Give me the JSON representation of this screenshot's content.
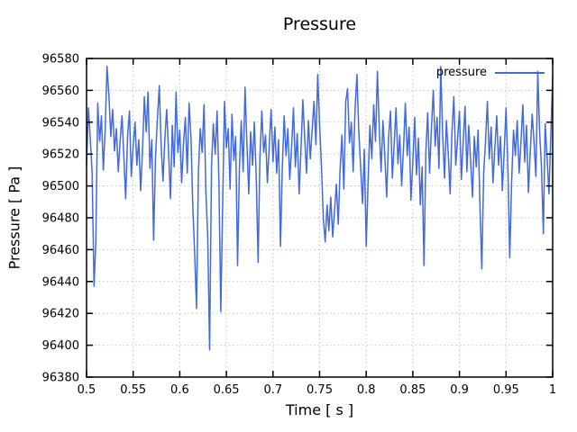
{
  "colors": {
    "line": "#4169e1",
    "grid": "#c4c4c4",
    "axis": "#000000",
    "text": "#000000",
    "background": "#ffffff"
  },
  "chart_data": {
    "type": "line",
    "title": "Pressure",
    "xlabel": "Time [ s ]",
    "ylabel": "Pressure [ Pa ]",
    "grid": true,
    "grid_style": "dotted",
    "legend_position": "top-right-inside",
    "xlim": [
      0.5,
      1
    ],
    "ylim": [
      96380,
      96580
    ],
    "x_ticks": [
      0.5,
      0.55,
      0.6,
      0.65,
      0.7,
      0.75,
      0.8,
      0.85,
      0.9,
      0.95,
      1
    ],
    "x_tick_labels": [
      "0.5",
      "0.55",
      "0.6",
      "0.65",
      "0.7",
      "0.75",
      "0.8",
      "0.85",
      "0.9",
      "0.95",
      "1"
    ],
    "y_ticks": [
      96380,
      96400,
      96420,
      96440,
      96460,
      96480,
      96500,
      96520,
      96540,
      96560,
      96580
    ],
    "y_tick_labels": [
      "96380",
      "96400",
      "96420",
      "96440",
      "96460",
      "96480",
      "96500",
      "96520",
      "96540",
      "96560",
      "96580"
    ],
    "series": [
      {
        "name": "pressure",
        "color": "#4169e1",
        "x_start": 0.5,
        "x_step": 0.002,
        "values": [
          96513,
          96549,
          96530,
          96508,
          96437,
          96465,
          96552,
          96528,
          96544,
          96510,
          96536,
          96575,
          96557,
          96531,
          96548,
          96522,
          96536,
          96509,
          96528,
          96544,
          96518,
          96492,
          96531,
          96547,
          96506,
          96525,
          96540,
          96513,
          96529,
          96497,
          96521,
          96556,
          96534,
          96559,
          96511,
          96529,
          96466,
          96519,
          96542,
          96563,
          96526,
          96503,
          96530,
          96548,
          96521,
          96492,
          96538,
          96512,
          96559,
          96521,
          96535,
          96502,
          96526,
          96543,
          96508,
          96552,
          96531,
          96486,
          96458,
          96423,
          96509,
          96536,
          96521,
          96551,
          96496,
          96468,
          96397,
          96512,
          96539,
          96520,
          96547,
          96503,
          96421,
          96489,
          96553,
          96524,
          96536,
          96498,
          96545,
          96516,
          96531,
          96450,
          96512,
          96541,
          96509,
          96562,
          96528,
          96495,
          96534,
          96513,
          96540,
          96506,
          96452,
          96518,
          96547,
          96521,
          96532,
          96502,
          96526,
          96548,
          96515,
          96537,
          96508,
          96529,
          96462,
          96511,
          96544,
          96519,
          96536,
          96504,
          96525,
          96549,
          96512,
          96533,
          96495,
          96522,
          96554,
          96530,
          96508,
          96541,
          96517,
          96535,
          96553,
          96526,
          96570,
          96538,
          96512,
          96480,
          96465,
          96488,
          96472,
          96493,
          96468,
          96484,
          96501,
          96476,
          96510,
          96532,
          96498,
          96553,
          96561,
          96527,
          96540,
          96509,
          96548,
          96570,
          96535,
          96512,
          96489,
          96523,
          96462,
          96503,
          96538,
          96517,
          96551,
          96528,
          96572,
          96536,
          96509,
          96541,
          96518,
          96493,
          96530,
          96547,
          96505,
          96526,
          96549,
          96514,
          96532,
          96500,
          96524,
          96552,
          96519,
          96537,
          96491,
          96515,
          96543,
          96507,
          96530,
          96488,
          96512,
          96450,
          96522,
          96546,
          96508,
          96537,
          96560,
          96525,
          96543,
          96511,
          96575,
          96532,
          96505,
          96541,
          96520,
          96495,
          96534,
          96556,
          96513,
          96529,
          96547,
          96504,
          96527,
          96550,
          96509,
          96538,
          96516,
          96493,
          96531,
          96512,
          96535,
          96489,
          96448,
          96508,
          96529,
          96553,
          96517,
          96537,
          96502,
          96524,
          96544,
          96513,
          96531,
          96497,
          96521,
          96549,
          96510,
          96455,
          96503,
          96535,
          96519,
          96541,
          96508,
          96527,
          96551,
          96515,
          96538,
          96496,
          96522,
          96545,
          96528,
          96506,
          96572,
          96534,
          96512,
          96470,
          96539,
          96518,
          96495,
          96531,
          96568
        ]
      }
    ]
  }
}
